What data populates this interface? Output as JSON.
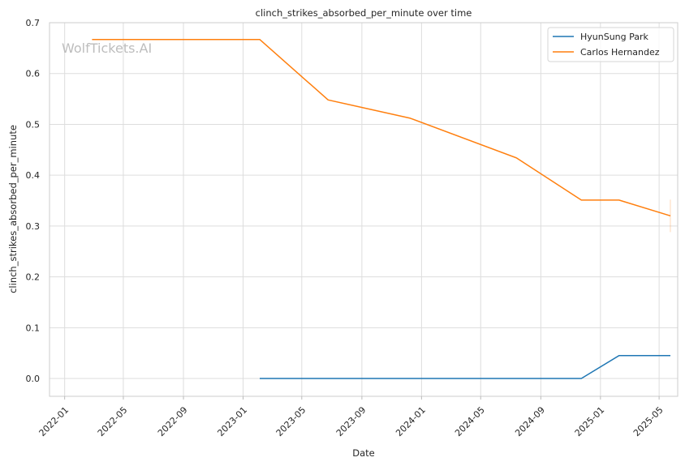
{
  "chart_data": {
    "type": "line",
    "title": "clinch_strikes_absorbed_per_minute over time",
    "xlabel": "Date",
    "ylabel": "clinch_strikes_absorbed_per_minute",
    "watermark": "WolfTickets.AI",
    "x_axis": {
      "type": "date",
      "min": "2021-12-01",
      "max": "2025-06-08",
      "ticks": [
        "2022-01",
        "2022-05",
        "2022-09",
        "2023-01",
        "2023-05",
        "2023-09",
        "2024-01",
        "2024-05",
        "2024-09",
        "2025-01",
        "2025-05"
      ]
    },
    "y_axis": {
      "min": -0.035,
      "max": 0.7,
      "ticks": [
        0.0,
        0.1,
        0.2,
        0.3,
        0.4,
        0.5,
        0.6,
        0.7
      ],
      "tick_labels": [
        "0.0",
        "0.1",
        "0.2",
        "0.3",
        "0.4",
        "0.5",
        "0.6",
        "0.7"
      ]
    },
    "grid": true,
    "legend_position": "top-right",
    "series": [
      {
        "name": "HyunSung Park",
        "color": "#1f77b4",
        "points": [
          {
            "x": "2023-02-04",
            "y": 0.0
          },
          {
            "x": "2024-11-23",
            "y": 0.0
          },
          {
            "x": "2025-02-08",
            "y": 0.045
          },
          {
            "x": "2025-05-24",
            "y": 0.045
          }
        ]
      },
      {
        "name": "Carlos Hernandez",
        "color": "#ff7f0e",
        "points": [
          {
            "x": "2022-02-26",
            "y": 0.667
          },
          {
            "x": "2023-02-04",
            "y": 0.667
          },
          {
            "x": "2023-06-24",
            "y": 0.548
          },
          {
            "x": "2023-12-09",
            "y": 0.512
          },
          {
            "x": "2024-07-13",
            "y": 0.434
          },
          {
            "x": "2024-11-23",
            "y": 0.351
          },
          {
            "x": "2025-02-08",
            "y": 0.351
          },
          {
            "x": "2025-05-24",
            "y": 0.32
          }
        ],
        "error_bar": {
          "x": "2025-05-24",
          "low": 0.288,
          "high": 0.352
        }
      }
    ]
  }
}
